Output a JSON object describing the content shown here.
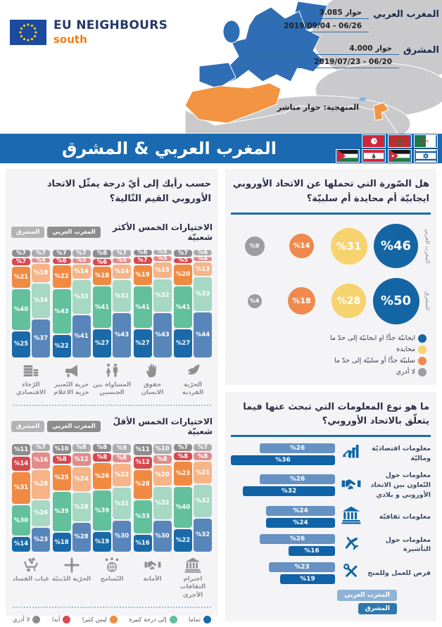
{
  "header": {
    "logo_title": "EU NEIGHBOURS",
    "logo_subtitle": "south",
    "stats": [
      {
        "region": "المغرب العربي",
        "dialogues": "3.085 حوار",
        "dates": "2019/09/04 - 06/26"
      },
      {
        "region": "المشرق",
        "dialogues": "4.000 حوار",
        "dates": "2019/07/23 - 06/20"
      }
    ],
    "methodology": "المنهجية: حوار مباشر"
  },
  "banner": {
    "title": "المغرب العربي & المشرق",
    "flags_row1": [
      "tunisia",
      "morocco",
      "algeria"
    ],
    "flags_row2": [
      "palestine",
      "lebanon",
      "jordan",
      "israel"
    ]
  },
  "region_tags": {
    "maghreb": "المغرب العربي",
    "mashreq": "المشرق"
  },
  "palettes": {
    "maghreb": [
      "#1a6aa9",
      "#63c09c",
      "#f08a43",
      "#d5494f",
      "#8d8d8d"
    ],
    "mashreq": [
      "#5886ba",
      "#a6d8c3",
      "#f6b488",
      "#e28b8b",
      "#acacac"
    ]
  },
  "values_section": {
    "question": "حسب رأيك إلى أيّ درجة يمثّل الاتحاد الأوروبي القيم التّالية؟",
    "answer_legend": [
      {
        "label": "تماما",
        "color": "#1a6aa9"
      },
      {
        "label": "إلى درجة كبيرة",
        "color": "#63c09c"
      },
      {
        "label": "ليس كثيرا",
        "color": "#f08a43"
      },
      {
        "label": "أبدا",
        "color": "#d5494f"
      },
      {
        "label": "لا أدري",
        "color": "#8d8d8d"
      }
    ]
  },
  "image_section": {
    "question": "هل الصّورة التي تحملها عن الاتحاد الأوروبي ايجابيّة أم محايدة أم سلبيّة؟",
    "legend": [
      {
        "label": "ايجابيّة جدًّا او ايجابيّة إلى حدّ ما",
        "color": "#1465a4"
      },
      {
        "label": "محايدة",
        "color": "#f6d36e"
      },
      {
        "label": "سلبيّة جدًّا أو سلبيّة إلى حدّ ما",
        "color": "#ef8a4e"
      },
      {
        "label": "لا أدري",
        "color": "#9d9d9d"
      }
    ]
  },
  "info_section": {
    "question": "ما هو نوع المعلومات التي تبحث عنها فيما يتعلّق بالاتحاد الأوروبي؟",
    "bar_colors": {
      "maghreb": "#6591c3",
      "mashreq": "#1063a6"
    },
    "legend": {
      "maghreb": "المغرب العربي",
      "mashreq": "المشرق"
    }
  },
  "chart_data": [
    {
      "type": "bar",
      "stacked": true,
      "title": "الاختيارات الخمس الأكثر شعبيّة",
      "stack_order": [
        "تماما",
        "إلى درجة كبيرة",
        "ليس كثيرا",
        "أبدا",
        "لا أدري"
      ],
      "series_names": [
        "المغرب العربي",
        "المشرق"
      ],
      "unit": "%",
      "groups": [
        {
          "category": "الحرّية الفردية",
          "icon": "dove-icon",
          "maghreb": [
            27,
            41,
            20,
            5,
            7
          ],
          "mashreq": [
            44,
            33,
            13,
            4,
            6
          ]
        },
        {
          "category": "حقوق الانسان",
          "icon": "hand-icon",
          "maghreb": [
            27,
            41,
            19,
            7,
            6
          ],
          "mashreq": [
            43,
            32,
            15,
            5,
            5
          ]
        },
        {
          "category": "المساواة بين الجنسين",
          "icon": "gender-icon",
          "maghreb": [
            27,
            41,
            18,
            6,
            8
          ],
          "mashreq": [
            43,
            31,
            14,
            5,
            7
          ]
        },
        {
          "category": "حرية التّعبير حرية الاعلام",
          "icon": "megaphone-icon",
          "maghreb": [
            22,
            43,
            22,
            6,
            7
          ],
          "mashreq": [
            41,
            33,
            14,
            5,
            7
          ]
        },
        {
          "category": "الرّخاء الاقتصادي",
          "icon": "coins-icon",
          "maghreb": [
            25,
            40,
            21,
            7,
            7
          ],
          "mashreq": [
            37,
            34,
            18,
            4,
            7
          ]
        }
      ]
    },
    {
      "type": "bar",
      "stacked": true,
      "title": "الاختيارات الخمس الأقلّ شعبيّة",
      "stack_order": [
        "تماما",
        "إلى درجة كبيرة",
        "ليس كثيرا",
        "أبدا",
        "لا أدري"
      ],
      "series_names": [
        "المغرب العربي",
        "المشرق"
      ],
      "unit": "%",
      "groups": [
        {
          "category": "احترام الثقافات الأخرى",
          "icon": "museum-icon",
          "maghreb": [
            22,
            40,
            23,
            8,
            7
          ],
          "mashreq": [
            32,
            32,
            21,
            8,
            7
          ]
        },
        {
          "category": "الأمانة",
          "icon": "handshake-icon",
          "maghreb": [
            16,
            33,
            28,
            12,
            11
          ],
          "mashreq": [
            30,
            32,
            20,
            8,
            10
          ]
        },
        {
          "category": "التّسامح",
          "icon": "globe-people-icon",
          "maghreb": [
            19,
            39,
            26,
            8,
            8
          ],
          "mashreq": [
            30,
            31,
            22,
            8,
            9
          ]
        },
        {
          "category": "الحرّية الدّينيّة",
          "icon": "joined-hands-icon",
          "maghreb": [
            18,
            39,
            25,
            8,
            10
          ],
          "mashreq": [
            28,
            28,
            24,
            12,
            8
          ]
        },
        {
          "category": "غياب الفساد",
          "icon": "money-cart-icon",
          "maghreb": [
            14,
            30,
            31,
            14,
            11
          ],
          "mashreq": [
            23,
            26,
            28,
            16,
            7
          ]
        }
      ]
    },
    {
      "type": "bubble",
      "title": "هل الصّورة التي تحملها عن الاتحاد الأوروبي ايجابيّة أم محايدة أم سلبيّة؟",
      "rows": [
        {
          "region": "المغرب العربي",
          "values": [
            {
              "label": "ايجابيّة جدًّا او ايجابيّة إلى حدّ ما",
              "value": 46,
              "color": "#1465a4"
            },
            {
              "label": "محايدة",
              "value": 31,
              "color": "#f6d36e"
            },
            {
              "label": "سلبيّة جدًّا أو سلبيّة إلى حدّ ما",
              "value": 14,
              "color": "#ef8a4e"
            },
            {
              "label": "لا أدري",
              "value": 9,
              "color": "#9d9d9d"
            }
          ]
        },
        {
          "region": "المشرق",
          "values": [
            {
              "label": "ايجابيّة جدًّا او ايجابيّة إلى حدّ ما",
              "value": 50,
              "color": "#1465a4"
            },
            {
              "label": "محايدة",
              "value": 28,
              "color": "#f6d36e"
            },
            {
              "label": "سلبيّة جدًّا أو سلبيّة إلى حدّ ما",
              "value": 18,
              "color": "#ef8a4e"
            },
            {
              "label": "لا أدري",
              "value": 4,
              "color": "#9d9d9d"
            }
          ]
        }
      ]
    },
    {
      "type": "bar",
      "orientation": "horizontal",
      "title": "ما هو نوع المعلومات التي تبحث عنها فيما يتعلّق بالاتحاد الأوروبي؟",
      "series_names": [
        "المغرب العربي",
        "المشرق"
      ],
      "unit": "%",
      "items": [
        {
          "label": "معلومات اقتصاديّة وماليّة",
          "icon": "chart-up-icon",
          "maghreb": 26,
          "mashreq": 36
        },
        {
          "label": "معلومات حول التّعاون بين الاتحاد الأوروبي و بلادي",
          "icon": "handshake-icon",
          "maghreb": 26,
          "mashreq": 32
        },
        {
          "label": "معلومات ثقافيّة",
          "icon": "museum-icon",
          "maghreb": 24,
          "mashreq": 24
        },
        {
          "label": "معلومات حول التأشيرة",
          "icon": "plane-icon",
          "maghreb": 26,
          "mashreq": 16
        },
        {
          "label": "فرص للعمل وللمنح",
          "icon": "tools-icon",
          "maghreb": 23,
          "mashreq": 19
        }
      ]
    }
  ]
}
